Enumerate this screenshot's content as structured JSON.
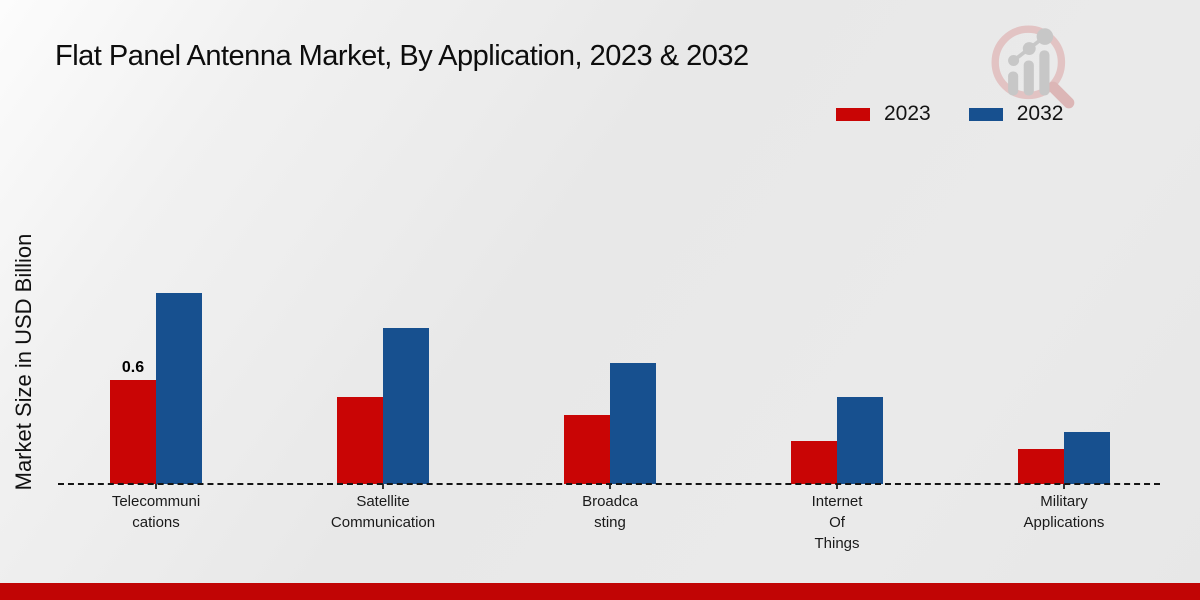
{
  "title": "Flat Panel Antenna Market, By Application, 2023 & 2032",
  "ylabel": "Market Size in USD Billion",
  "watermark_icon": "magnifier-growth-chart-logo",
  "colors": {
    "series_2023": "#c90505",
    "series_2032": "#17508f",
    "footer_band": "#c10505",
    "background": "#e9e9e9",
    "baseline": "#141414"
  },
  "chart_data": {
    "type": "bar",
    "title": "Flat Panel Antenna Market, By Application, 2023 & 2032",
    "xlabel": "",
    "ylabel": "Market Size in USD Billion",
    "categories": [
      "Telecommunications",
      "Satellite Communication",
      "Broadcasting",
      "Internet Of Things",
      "Military Applications"
    ],
    "categories_wrapped": [
      "Telecommuni\ncations",
      "Satellite\nCommunication",
      "Broadca\nsting",
      "Internet\nOf\nThings",
      "Military\nApplications"
    ],
    "series": [
      {
        "name": "2023",
        "color": "#c90505",
        "values": [
          0.6,
          0.5,
          0.4,
          0.25,
          0.2
        ]
      },
      {
        "name": "2032",
        "color": "#17508f",
        "values": [
          1.1,
          0.9,
          0.7,
          0.5,
          0.3
        ]
      }
    ],
    "data_labels": [
      {
        "category_index": 0,
        "series_index": 0,
        "text": "0.6"
      }
    ],
    "ylim": [
      0,
      1.25
    ],
    "grid": false,
    "legend_position": "top-right",
    "baseline_style": "dashed",
    "yaxis_ticks_visible": false
  }
}
